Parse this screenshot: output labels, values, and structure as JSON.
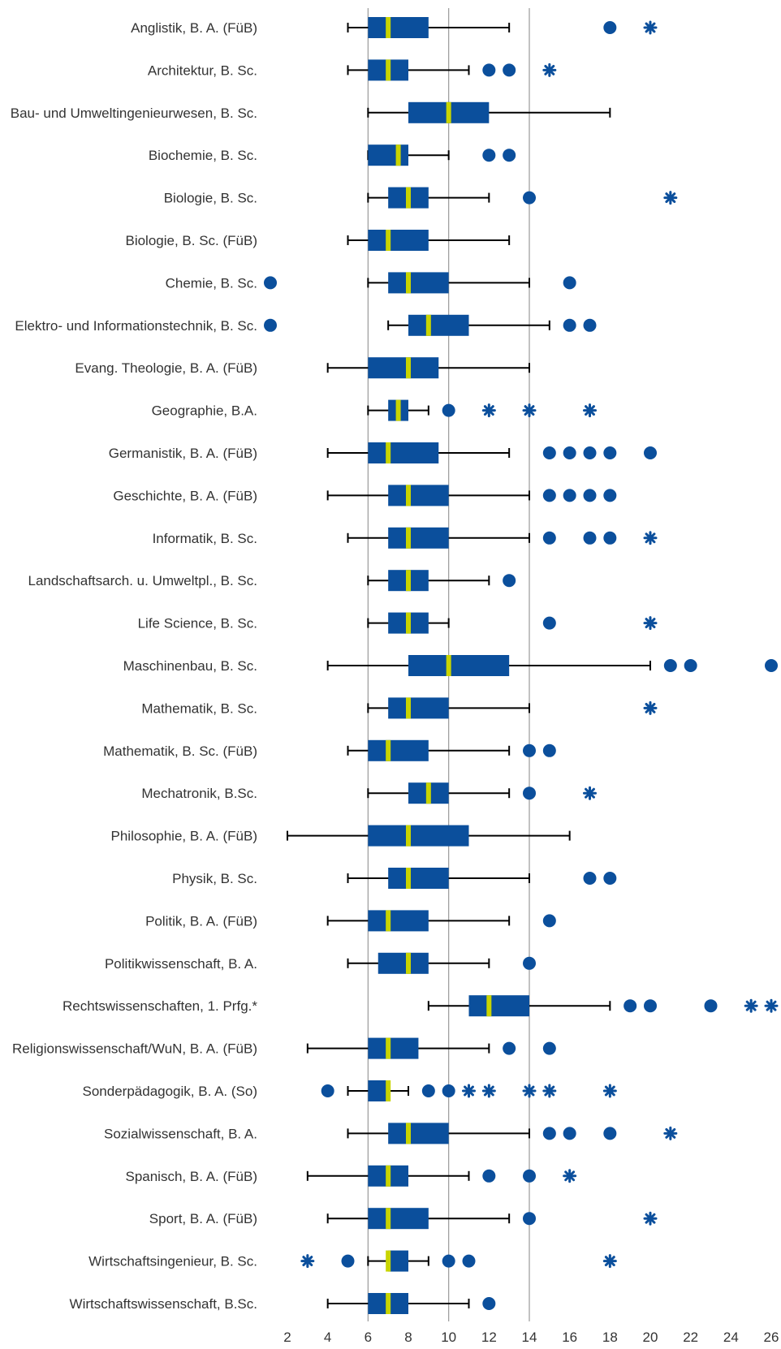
{
  "chart_data": {
    "type": "boxplot",
    "orientation": "horizontal",
    "xlim": [
      2,
      26
    ],
    "x_ticks": [
      2,
      4,
      6,
      8,
      10,
      12,
      14,
      16,
      18,
      20,
      22,
      24,
      26
    ],
    "vertical_gridlines": [
      6,
      10,
      14
    ],
    "colors": {
      "box": "#0b4f9c",
      "median": "#c8d400",
      "outlier": "#0b4f9c",
      "whisker": "#000000",
      "grid": "#999999"
    },
    "categories": [
      {
        "label": "Anglistik, B. A. (FüB)",
        "min": 5,
        "q1": 6,
        "median": 7,
        "q3": 9,
        "max": 13,
        "outliers": [
          18
        ],
        "extremes": [
          20
        ]
      },
      {
        "label": "Architektur, B. Sc.",
        "min": 5,
        "q1": 6,
        "median": 7,
        "q3": 8,
        "max": 11,
        "outliers": [
          12,
          13
        ],
        "extremes": [
          15
        ]
      },
      {
        "label": "Bau- und Umweltingenieurwesen, B. Sc.",
        "min": 6,
        "q1": 8,
        "median": 10,
        "q3": 12,
        "max": 18,
        "outliers": [],
        "extremes": []
      },
      {
        "label": "Biochemie, B. Sc.",
        "min": 6,
        "q1": 6,
        "median": 7.5,
        "q3": 8,
        "max": 10,
        "outliers": [
          12,
          13
        ],
        "extremes": []
      },
      {
        "label": "Biologie, B. Sc.",
        "min": 6,
        "q1": 7,
        "median": 8,
        "q3": 9,
        "max": 12,
        "outliers": [
          14
        ],
        "extremes": [
          21
        ]
      },
      {
        "label": "Biologie, B. Sc. (FüB)",
        "min": 5,
        "q1": 6,
        "median": 7,
        "q3": 9,
        "max": 13,
        "outliers": [],
        "extremes": []
      },
      {
        "label": "Chemie, B. Sc.",
        "min": 6,
        "q1": 7,
        "median": 8,
        "q3": 10,
        "max": 14,
        "outliers": [
          1,
          16
        ],
        "extremes": []
      },
      {
        "label": "Elektro- und Informationstechnik, B. Sc.",
        "min": 7,
        "q1": 8,
        "median": 9,
        "q3": 11,
        "max": 15,
        "outliers": [
          1,
          16,
          17
        ],
        "extremes": []
      },
      {
        "label": "Evang. Theologie, B. A. (FüB)",
        "min": 4,
        "q1": 6,
        "median": 8,
        "q3": 9.5,
        "max": 14,
        "outliers": [],
        "extremes": []
      },
      {
        "label": "Geographie, B.A.",
        "min": 6,
        "q1": 7,
        "median": 7.5,
        "q3": 8,
        "max": 9,
        "outliers": [
          10
        ],
        "extremes": [
          12,
          14,
          17
        ]
      },
      {
        "label": "Germanistik, B. A. (FüB)",
        "min": 4,
        "q1": 6,
        "median": 7,
        "q3": 9.5,
        "max": 13,
        "outliers": [
          15,
          16,
          17,
          18,
          20
        ],
        "extremes": []
      },
      {
        "label": "Geschichte, B. A. (FüB)",
        "min": 4,
        "q1": 7,
        "median": 8,
        "q3": 10,
        "max": 14,
        "outliers": [
          15,
          16,
          17,
          18
        ],
        "extremes": []
      },
      {
        "label": "Informatik, B. Sc.",
        "min": 5,
        "q1": 7,
        "median": 8,
        "q3": 10,
        "max": 14,
        "outliers": [
          15,
          17,
          18
        ],
        "extremes": [
          20
        ]
      },
      {
        "label": "Landschaftsarch. u. Umweltpl., B. Sc.",
        "min": 6,
        "q1": 7,
        "median": 8,
        "q3": 9,
        "max": 12,
        "outliers": [
          13
        ],
        "extremes": []
      },
      {
        "label": "Life Science, B. Sc.",
        "min": 6,
        "q1": 7,
        "median": 8,
        "q3": 9,
        "max": 10,
        "outliers": [
          15
        ],
        "extremes": [
          20
        ]
      },
      {
        "label": "Maschinenbau, B. Sc.",
        "min": 4,
        "q1": 8,
        "median": 10,
        "q3": 13,
        "max": 20,
        "outliers": [
          21,
          22,
          26
        ],
        "extremes": []
      },
      {
        "label": "Mathematik, B. Sc.",
        "min": 6,
        "q1": 7,
        "median": 8,
        "q3": 10,
        "max": 14,
        "outliers": [],
        "extremes": [
          20
        ]
      },
      {
        "label": "Mathematik, B. Sc. (FüB)",
        "min": 5,
        "q1": 6,
        "median": 7,
        "q3": 9,
        "max": 13,
        "outliers": [
          14,
          15
        ],
        "extremes": []
      },
      {
        "label": "Mechatronik, B.Sc.",
        "min": 6,
        "q1": 8,
        "median": 9,
        "q3": 10,
        "max": 13,
        "outliers": [
          14
        ],
        "extremes": [
          17
        ]
      },
      {
        "label": "Philosophie, B. A. (FüB)",
        "min": 2,
        "q1": 6,
        "median": 8,
        "q3": 11,
        "max": 16,
        "outliers": [],
        "extremes": []
      },
      {
        "label": "Physik, B. Sc.",
        "min": 5,
        "q1": 7,
        "median": 8,
        "q3": 10,
        "max": 14,
        "outliers": [
          17,
          18
        ],
        "extremes": []
      },
      {
        "label": "Politik, B. A. (FüB)",
        "min": 4,
        "q1": 6,
        "median": 7,
        "q3": 9,
        "max": 13,
        "outliers": [
          15
        ],
        "extremes": []
      },
      {
        "label": "Politikwissenschaft, B. A.",
        "min": 5,
        "q1": 6.5,
        "median": 8,
        "q3": 9,
        "max": 12,
        "outliers": [
          14
        ],
        "extremes": []
      },
      {
        "label": "Rechtswissenschaften, 1. Prfg.*",
        "min": 9,
        "q1": 11,
        "median": 12,
        "q3": 14,
        "max": 18,
        "outliers": [
          19,
          20,
          23
        ],
        "extremes": [
          25,
          26
        ]
      },
      {
        "label": "Religionswissenschaft/WuN, B. A. (FüB)",
        "min": 3,
        "q1": 6,
        "median": 7,
        "q3": 8.5,
        "max": 12,
        "outliers": [
          13,
          15
        ],
        "extremes": []
      },
      {
        "label": "Sonderpädagogik, B. A. (So)",
        "min": 5,
        "q1": 6,
        "median": 7,
        "q3": 7,
        "max": 8,
        "outliers": [
          4,
          9,
          10
        ],
        "extremes": [
          11,
          12,
          14,
          15,
          18
        ]
      },
      {
        "label": "Sozialwissenschaft, B. A.",
        "min": 5,
        "q1": 7,
        "median": 8,
        "q3": 10,
        "max": 14,
        "outliers": [
          15,
          16,
          18
        ],
        "extremes": [
          21
        ]
      },
      {
        "label": "Spanisch, B. A. (FüB)",
        "min": 3,
        "q1": 6,
        "median": 7,
        "q3": 8,
        "max": 11,
        "outliers": [
          12,
          14
        ],
        "extremes": [
          16
        ]
      },
      {
        "label": "Sport, B. A. (FüB)",
        "min": 4,
        "q1": 6,
        "median": 7,
        "q3": 9,
        "max": 13,
        "outliers": [
          14
        ],
        "extremes": [
          20
        ]
      },
      {
        "label": "Wirtschaftsingenieur, B. Sc.",
        "min": 6,
        "q1": 7,
        "median": 7,
        "q3": 8,
        "max": 9,
        "outliers": [
          5,
          10,
          11
        ],
        "extremes": [
          3,
          18
        ]
      },
      {
        "label": "Wirtschaftswissenschaft, B.Sc.",
        "min": 4,
        "q1": 6,
        "median": 7,
        "q3": 8,
        "max": 11,
        "outliers": [
          12
        ],
        "extremes": []
      }
    ]
  }
}
